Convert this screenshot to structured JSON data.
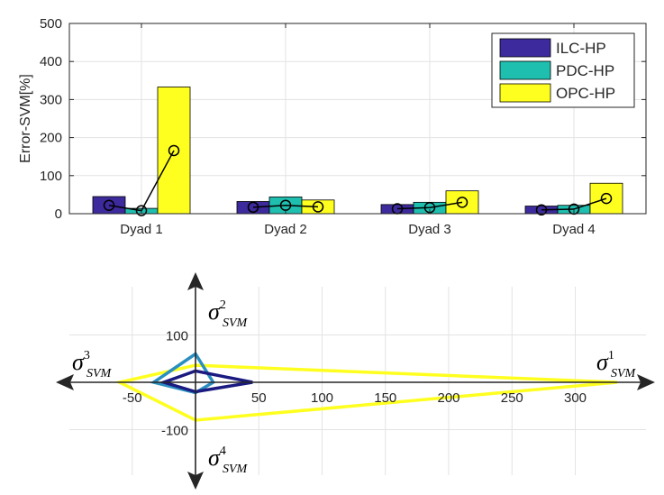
{
  "chart_data": [
    {
      "type": "bar",
      "ylabel": "Error-SVM[%]",
      "ylim": [
        0,
        500
      ],
      "yticks": [
        "0",
        "100",
        "200",
        "300",
        "400",
        "500"
      ],
      "categories": [
        "Dyad 1",
        "Dyad 2",
        "Dyad 3",
        "Dyad 4"
      ],
      "grid": true,
      "legend_position": "top-right",
      "series": [
        {
          "name": "ILC-HP",
          "color": "#3d2a9c",
          "values": [
            45,
            32,
            24,
            20
          ]
        },
        {
          "name": "PDC-HP",
          "color": "#1fbfb0",
          "values": [
            14,
            44,
            30,
            22
          ]
        },
        {
          "name": "OPC-HP",
          "color": "#ffff1f",
          "values": [
            333,
            36,
            60,
            80
          ]
        }
      ],
      "mean_line": {
        "color": "#000000",
        "values": [
          [
            22,
            8,
            166
          ],
          [
            17,
            22,
            18
          ],
          [
            13,
            16,
            30
          ],
          [
            10,
            12,
            40
          ]
        ]
      }
    },
    {
      "type": "radar",
      "xlim": [
        -110,
        350
      ],
      "ylim": [
        -200,
        200
      ],
      "xticks": [
        "-50",
        "50",
        "100",
        "150",
        "200",
        "250",
        "300"
      ],
      "yticks": [
        "100",
        "-100"
      ],
      "axis_labels": {
        "sigma": "σ",
        "sub": "SVM",
        "right": "1",
        "up": "2",
        "left": "3",
        "down": "4"
      },
      "series": [
        {
          "name": "ILC-HP",
          "color": "#1a1a80",
          "values": [
            45,
            24,
            25,
            20
          ]
        },
        {
          "name": "PDC-HP",
          "color": "#2a8fc0",
          "values": [
            14,
            60,
            33,
            22
          ]
        },
        {
          "name": "OPC-HP",
          "color": "#ffff1f",
          "values": [
            333,
            36,
            60,
            80
          ]
        }
      ]
    }
  ]
}
